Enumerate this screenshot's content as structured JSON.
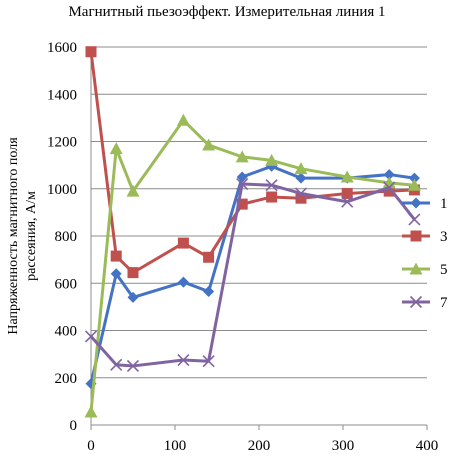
{
  "chart_data": {
    "type": "line",
    "title": "Магнитный пьезоэффект. Измерительная линия 1",
    "xlabel": "",
    "ylabel": "Напряженность магнитного поля рассеяния, А/м",
    "xlim": [
      0,
      400
    ],
    "ylim": [
      0,
      1600
    ],
    "xticks": [
      "0",
      "100",
      "200",
      "300",
      "400"
    ],
    "yticks": [
      "0",
      "200",
      "400",
      "600",
      "800",
      "1000",
      "1200",
      "1400",
      "1600"
    ],
    "grid": "horizontal",
    "legend_position": "right",
    "series": [
      {
        "name": "1",
        "color": "#4472C4",
        "marker": "diamond",
        "x": [
          0,
          30,
          50,
          110,
          140,
          180,
          215,
          250,
          305,
          355,
          385
        ],
        "y": [
          175,
          640,
          540,
          605,
          565,
          1050,
          1095,
          1045,
          1045,
          1060,
          1045
        ]
      },
      {
        "name": "3",
        "color": "#C0504D",
        "marker": "square",
        "x": [
          0,
          30,
          50,
          110,
          140,
          180,
          215,
          250,
          305,
          355,
          385
        ],
        "y": [
          1580,
          715,
          645,
          770,
          710,
          935,
          965,
          960,
          980,
          990,
          995
        ]
      },
      {
        "name": "5",
        "color": "#9BBB59",
        "marker": "triangle",
        "x": [
          0,
          30,
          50,
          110,
          140,
          180,
          215,
          250,
          305,
          355,
          385
        ],
        "y": [
          55,
          1170,
          990,
          1290,
          1185,
          1135,
          1120,
          1085,
          1050,
          1025,
          1015
        ]
      },
      {
        "name": "7",
        "color": "#8064A2",
        "marker": "x",
        "x": [
          0,
          30,
          50,
          110,
          140,
          180,
          215,
          250,
          305,
          355,
          385
        ],
        "y": [
          375,
          255,
          250,
          275,
          270,
          1020,
          1015,
          980,
          945,
          1005,
          870
        ]
      }
    ]
  }
}
